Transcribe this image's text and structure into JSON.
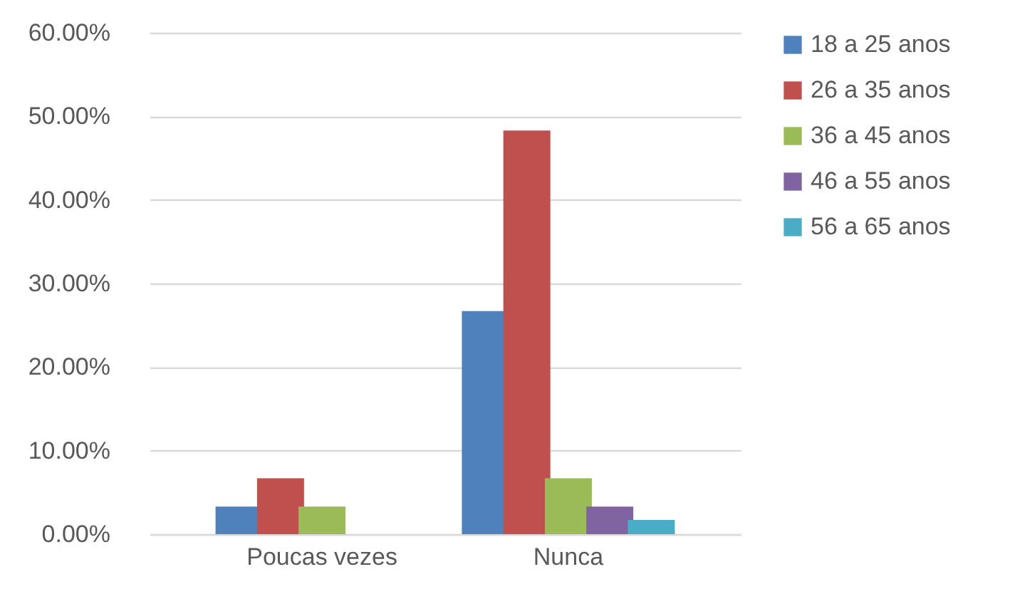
{
  "chart_data": {
    "type": "bar",
    "categories": [
      "Poucas vezes",
      "Nunca"
    ],
    "series": [
      {
        "name": "18 a 25 anos",
        "color": "#4f81bd",
        "values": [
          3.3,
          26.7
        ]
      },
      {
        "name": "26 a 35 anos",
        "color": "#c0504d",
        "values": [
          6.7,
          48.3
        ]
      },
      {
        "name": "36 a 45 anos",
        "color": "#9bbb59",
        "values": [
          3.3,
          6.7
        ]
      },
      {
        "name": "46 a 55 anos",
        "color": "#8064a2",
        "values": [
          0,
          3.3
        ]
      },
      {
        "name": "56 a 65 anos",
        "color": "#4bacc6",
        "values": [
          0,
          1.7
        ]
      }
    ],
    "ylim": [
      0,
      60
    ],
    "yticks": [
      {
        "value": 0,
        "label": "0.00%"
      },
      {
        "value": 10,
        "label": "10.00%"
      },
      {
        "value": 20,
        "label": "20.00%"
      },
      {
        "value": 30,
        "label": "30.00%"
      },
      {
        "value": 40,
        "label": "40.00%"
      },
      {
        "value": 50,
        "label": "50.00%"
      },
      {
        "value": 60,
        "label": "60.00%"
      }
    ],
    "grid": "y",
    "legend": "right"
  }
}
